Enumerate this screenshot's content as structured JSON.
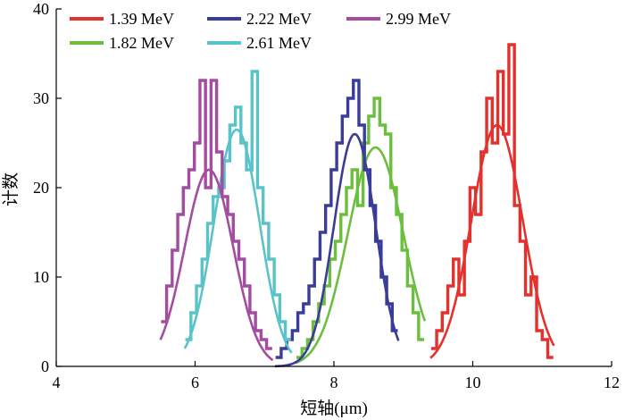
{
  "chart_data": {
    "type": "histogram",
    "xlabel": "短轴(μm)",
    "ylabel": "计数",
    "xlim": [
      4,
      12
    ],
    "ylim": [
      0,
      40
    ],
    "x_ticks": [
      "4",
      "6",
      "8",
      "10",
      "12"
    ],
    "y_ticks": [
      "0",
      "10",
      "20",
      "30",
      "40"
    ],
    "legend_position": "top",
    "series": [
      {
        "name": "1.39 MeV",
        "color": "#e3312d",
        "fit": {
          "mean": 10.35,
          "sd": 0.37,
          "peak": 27
        },
        "bins": [
          [
            9.44,
            2
          ],
          [
            9.52,
            4
          ],
          [
            9.6,
            6
          ],
          [
            9.68,
            9
          ],
          [
            9.76,
            12
          ],
          [
            9.84,
            8
          ],
          [
            9.92,
            14
          ],
          [
            10.0,
            20
          ],
          [
            10.08,
            17
          ],
          [
            10.16,
            24
          ],
          [
            10.24,
            30
          ],
          [
            10.32,
            25
          ],
          [
            10.4,
            33
          ],
          [
            10.48,
            26
          ],
          [
            10.56,
            36
          ],
          [
            10.64,
            18
          ],
          [
            10.72,
            14
          ],
          [
            10.8,
            8
          ],
          [
            10.88,
            10
          ],
          [
            10.96,
            4
          ],
          [
            11.04,
            3
          ],
          [
            11.12,
            1
          ]
        ]
      },
      {
        "name": "1.82 MeV",
        "color": "#6cbf3e",
        "fit": {
          "mean": 8.6,
          "sd": 0.4,
          "peak": 24.5
        },
        "bins": [
          [
            7.5,
            1
          ],
          [
            7.58,
            2
          ],
          [
            7.66,
            3
          ],
          [
            7.74,
            5
          ],
          [
            7.82,
            7
          ],
          [
            7.9,
            9
          ],
          [
            7.98,
            12
          ],
          [
            8.06,
            14
          ],
          [
            8.14,
            17
          ],
          [
            8.22,
            20
          ],
          [
            8.3,
            22
          ],
          [
            8.38,
            18
          ],
          [
            8.46,
            25
          ],
          [
            8.54,
            28
          ],
          [
            8.62,
            30
          ],
          [
            8.7,
            27
          ],
          [
            8.78,
            26
          ],
          [
            8.86,
            20
          ],
          [
            8.94,
            17
          ],
          [
            9.02,
            13
          ],
          [
            9.1,
            9
          ],
          [
            9.18,
            6
          ],
          [
            9.26,
            3
          ]
        ]
      },
      {
        "name": "2.22 MeV",
        "color": "#3a3d97",
        "fit": {
          "mean": 8.3,
          "sd": 0.3,
          "peak": 26
        },
        "bins": [
          [
            7.2,
            1
          ],
          [
            7.28,
            2
          ],
          [
            7.36,
            3
          ],
          [
            7.44,
            4
          ],
          [
            7.52,
            6
          ],
          [
            7.6,
            7
          ],
          [
            7.68,
            9
          ],
          [
            7.76,
            12
          ],
          [
            7.84,
            15
          ],
          [
            7.92,
            18
          ],
          [
            8.0,
            22
          ],
          [
            8.08,
            25
          ],
          [
            8.16,
            28
          ],
          [
            8.24,
            30
          ],
          [
            8.32,
            32
          ],
          [
            8.4,
            27
          ],
          [
            8.48,
            22
          ],
          [
            8.56,
            18
          ],
          [
            8.64,
            14
          ],
          [
            8.72,
            10
          ],
          [
            8.8,
            7
          ],
          [
            8.88,
            4
          ]
        ]
      },
      {
        "name": "2.61 MeV",
        "color": "#5ac3c9",
        "fit": {
          "mean": 6.6,
          "sd": 0.33,
          "peak": 26.5
        },
        "bins": [
          [
            5.9,
            3
          ],
          [
            5.98,
            6
          ],
          [
            6.06,
            9
          ],
          [
            6.14,
            12
          ],
          [
            6.22,
            16
          ],
          [
            6.3,
            19
          ],
          [
            6.38,
            20
          ],
          [
            6.46,
            23
          ],
          [
            6.54,
            27
          ],
          [
            6.62,
            29
          ],
          [
            6.7,
            25
          ],
          [
            6.78,
            22
          ],
          [
            6.86,
            33
          ],
          [
            6.94,
            20
          ],
          [
            7.02,
            16
          ],
          [
            7.1,
            12
          ],
          [
            7.18,
            8
          ],
          [
            7.26,
            5
          ],
          [
            7.34,
            3
          ]
        ]
      },
      {
        "name": "2.99 MeV",
        "color": "#a34ca0",
        "fit": {
          "mean": 6.2,
          "sd": 0.35,
          "peak": 22
        },
        "bins": [
          [
            5.55,
            5
          ],
          [
            5.63,
            9
          ],
          [
            5.71,
            13
          ],
          [
            5.79,
            17
          ],
          [
            5.87,
            20
          ],
          [
            5.95,
            22
          ],
          [
            6.03,
            25
          ],
          [
            6.11,
            32
          ],
          [
            6.19,
            20
          ],
          [
            6.27,
            32
          ],
          [
            6.35,
            24
          ],
          [
            6.43,
            19
          ],
          [
            6.51,
            17
          ],
          [
            6.59,
            14
          ],
          [
            6.67,
            12
          ],
          [
            6.75,
            9
          ],
          [
            6.83,
            6
          ],
          [
            6.91,
            4
          ],
          [
            6.99,
            3
          ],
          [
            7.07,
            2
          ]
        ]
      }
    ]
  }
}
